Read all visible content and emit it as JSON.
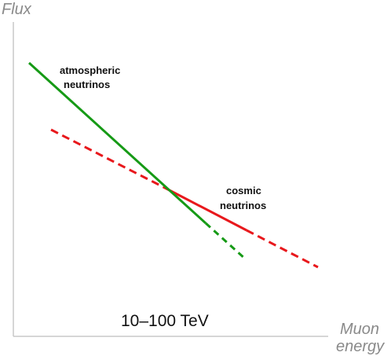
{
  "axes": {
    "y_title": "Flux",
    "x_title_line1": "Muon",
    "x_title_line2": "energy"
  },
  "labels": {
    "atmospheric_line1": "atmospheric",
    "atmospheric_line2": "neutrinos",
    "cosmic_line1": "cosmic",
    "cosmic_line2": "neutrinos",
    "energy_range": "10–100 TeV"
  },
  "colors": {
    "atmospheric": "#169a16",
    "cosmic": "#e8181c",
    "axis": "#c8c8c8",
    "axis_title": "#8a8a8a",
    "text": "#111111"
  },
  "chart_data": {
    "type": "line",
    "xlabel": "Muon energy",
    "ylabel": "Flux",
    "grid": false,
    "series": [
      {
        "name": "atmospheric neutrinos",
        "color": "#169a16",
        "style": "solid then dashed beyond the crossover",
        "relative_slope": "steeper"
      },
      {
        "name": "cosmic neutrinos",
        "color": "#e8181c",
        "style": "dashed, solid around the crossover, dashed at high energy",
        "relative_slope": "shallower"
      }
    ],
    "annotations": [
      "10–10 TeV crossover region labelled 10–100 TeV"
    ]
  }
}
